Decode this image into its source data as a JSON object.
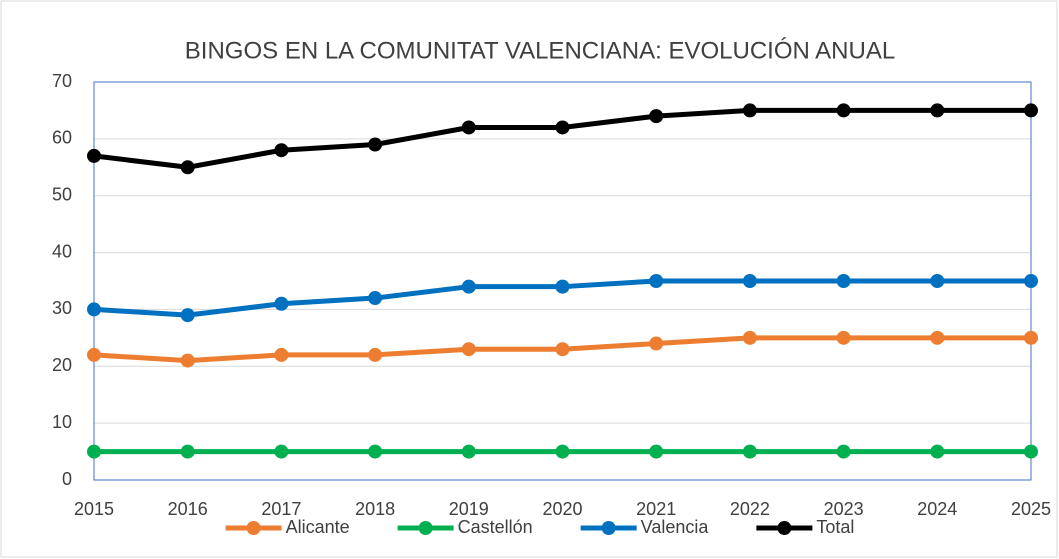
{
  "chart_data": {
    "type": "line",
    "title": "BINGOS EN LA COMUNITAT VALENCIANA: EVOLUCIÓN ANUAL",
    "categories": [
      "2015",
      "2016",
      "2017",
      "2018",
      "2019",
      "2020",
      "2021",
      "2022",
      "2023",
      "2024",
      "2025"
    ],
    "series": [
      {
        "name": "Alicante",
        "color": "#ed7d31",
        "values": [
          22,
          21,
          22,
          22,
          23,
          23,
          24,
          25,
          25,
          25,
          25
        ]
      },
      {
        "name": "Castellón",
        "color": "#00b050",
        "values": [
          5,
          5,
          5,
          5,
          5,
          5,
          5,
          5,
          5,
          5,
          5
        ]
      },
      {
        "name": "Valencia",
        "color": "#0070c0",
        "values": [
          30,
          29,
          31,
          32,
          34,
          34,
          35,
          35,
          35,
          35,
          35
        ]
      },
      {
        "name": "Total",
        "color": "#000000",
        "values": [
          57,
          55,
          58,
          59,
          62,
          62,
          64,
          65,
          65,
          65,
          65
        ]
      }
    ],
    "ylim": [
      0,
      70
    ],
    "yticks": [
      0,
      10,
      20,
      30,
      40,
      50,
      60,
      70
    ],
    "grid": true,
    "legend": "bottom"
  }
}
